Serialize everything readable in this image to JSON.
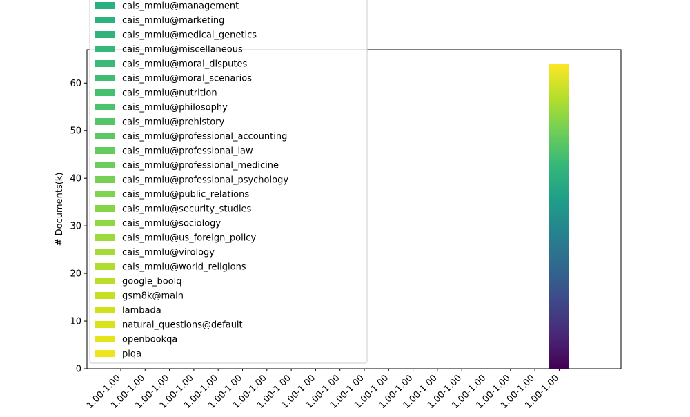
{
  "chart_data": {
    "type": "bar",
    "stacked": true,
    "ylabel": "# Documents(k)",
    "xlabel": "",
    "ylim": [
      0,
      67
    ],
    "yticks": [
      0,
      10,
      20,
      30,
      40,
      50,
      60
    ],
    "categories": [
      "1.00-1.00",
      "1.00-1.00",
      "1.00-1.00",
      "1.00-1.00",
      "1.00-1.00",
      "1.00-1.00",
      "1.00-1.00",
      "1.00-1.00",
      "1.00-1.00",
      "1.00-1.00",
      "1.00-1.00",
      "1.00-1.00",
      "1.00-1.00",
      "1.00-1.00",
      "1.00-1.00",
      "1.00-1.00",
      "1.00-1.00",
      "1.00-1.00",
      "1.00-1.00"
    ],
    "bar": {
      "category_index": 18,
      "total": 64,
      "colormap": "viridis"
    },
    "legend_position": "upper-left",
    "legend_entries": [
      {
        "name": "cais_mmlu@management",
        "color": "#2ab07f"
      },
      {
        "name": "cais_mmlu@marketing",
        "color": "#2db27d"
      },
      {
        "name": "cais_mmlu@medical_genetics",
        "color": "#30b47b"
      },
      {
        "name": "cais_mmlu@miscellaneous",
        "color": "#35b779"
      },
      {
        "name": "cais_mmlu@moral_disputes",
        "color": "#3aba76"
      },
      {
        "name": "cais_mmlu@moral_scenarios",
        "color": "#40bd72"
      },
      {
        "name": "cais_mmlu@nutrition",
        "color": "#46c06f"
      },
      {
        "name": "cais_mmlu@philosophy",
        "color": "#4cc26c"
      },
      {
        "name": "cais_mmlu@prehistory",
        "color": "#54c568"
      },
      {
        "name": "cais_mmlu@professional_accounting",
        "color": "#5cc863"
      },
      {
        "name": "cais_mmlu@professional_law",
        "color": "#64cb5f"
      },
      {
        "name": "cais_mmlu@professional_medicine",
        "color": "#6ccd5a"
      },
      {
        "name": "cais_mmlu@professional_psychology",
        "color": "#75d054"
      },
      {
        "name": "cais_mmlu@public_relations",
        "color": "#7ed34f"
      },
      {
        "name": "cais_mmlu@security_studies",
        "color": "#86d549"
      },
      {
        "name": "cais_mmlu@sociology",
        "color": "#90d743"
      },
      {
        "name": "cais_mmlu@us_foreign_policy",
        "color": "#9bd93c"
      },
      {
        "name": "cais_mmlu@virology",
        "color": "#a5db36"
      },
      {
        "name": "cais_mmlu@world_religions",
        "color": "#b0dd2f"
      },
      {
        "name": "google_boolq",
        "color": "#bade28"
      },
      {
        "name": "gsm8k@main",
        "color": "#c5e021"
      },
      {
        "name": "lambada",
        "color": "#d0e11c"
      },
      {
        "name": "natural_questions@default",
        "color": "#dae319"
      },
      {
        "name": "openbookqa",
        "color": "#e5e419"
      },
      {
        "name": "piqa",
        "color": "#f0e51c"
      }
    ],
    "colormap_stops": [
      "#440154",
      "#482878",
      "#3e4989",
      "#31688e",
      "#26828e",
      "#1f9e89",
      "#35b779",
      "#6ece58",
      "#b5de2b",
      "#fde725"
    ]
  }
}
